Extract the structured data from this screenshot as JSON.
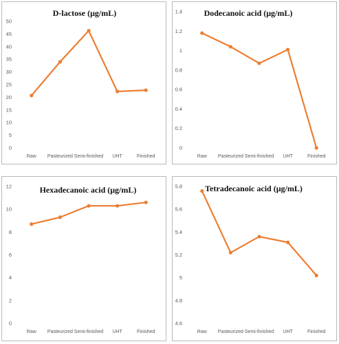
{
  "chart_data": [
    {
      "type": "line",
      "title": "D-lactose (μg/mL)",
      "categories": [
        "Raw",
        "Pasteurized",
        "Semi-finished",
        "UHT",
        "Finished"
      ],
      "series": [
        {
          "values": [
            20.7,
            34.0,
            46.3,
            22.3,
            22.8
          ]
        }
      ],
      "yticks": [
        "0",
        "5",
        "10",
        "15",
        "20",
        "25",
        "30",
        "35",
        "40",
        "45",
        "50"
      ],
      "ylim": [
        0,
        50
      ],
      "color": "#ED7D31",
      "grid": false
    },
    {
      "type": "line",
      "title": "Dodecanoic acid (μg/mL)",
      "categories": [
        "Raw",
        "Pasteurized",
        "Semi-finished",
        "UHT",
        "Finished"
      ],
      "series": [
        {
          "values": [
            1.18,
            1.04,
            0.87,
            1.01,
            0.0
          ]
        }
      ],
      "yticks": [
        "0",
        "0.2",
        "0.4",
        "0.6",
        "0.8",
        "1",
        "1.2",
        "1.4"
      ],
      "ylim": [
        0,
        1.4
      ],
      "color": "#ED7D31",
      "grid": false
    },
    {
      "type": "line",
      "title": "Hexadecanoic acid (μg/mL)",
      "categories": [
        "Raw",
        "Pasteurized",
        "Semi-finished",
        "UHT",
        "Finished"
      ],
      "series": [
        {
          "values": [
            8.7,
            9.3,
            10.3,
            10.3,
            10.6
          ]
        }
      ],
      "yticks": [
        "0",
        "2",
        "4",
        "6",
        "8",
        "10",
        "12"
      ],
      "ylim": [
        0,
        12
      ],
      "color": "#ED7D31",
      "grid": false
    },
    {
      "type": "line",
      "title": "Tetradecanoic acid (μg/mL)",
      "categories": [
        "Raw",
        "Pasteurized",
        "Semi-finished",
        "UHT",
        "Finished"
      ],
      "series": [
        {
          "values": [
            5.76,
            5.22,
            5.36,
            5.31,
            5.02
          ]
        }
      ],
      "yticks": [
        "4.6",
        "4.8",
        "5",
        "5.2",
        "5.4",
        "5.6",
        "5.8"
      ],
      "ylim": [
        4.6,
        5.8
      ],
      "color": "#ED7D31",
      "grid": false
    }
  ]
}
